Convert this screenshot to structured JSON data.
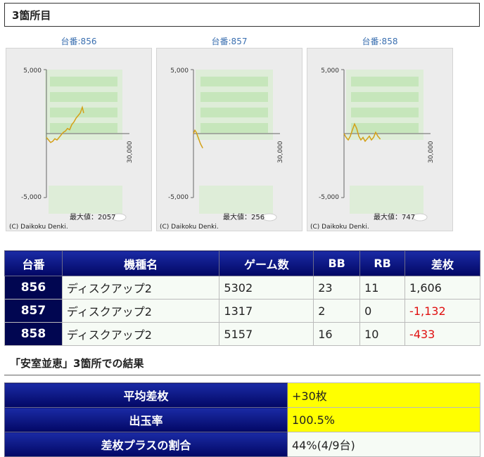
{
  "section_title": "3箇所目",
  "graphs": [
    {
      "label": "台番:856",
      "y_max_label": "5,000",
      "y_min_label": "-5,000",
      "x_max_label": "30,000",
      "max_value_text": "最大値：2057",
      "copyright": "(C) Daikoku Denki.",
      "series": [
        [
          0,
          -300
        ],
        [
          300,
          -500
        ],
        [
          600,
          -700
        ],
        [
          900,
          -600
        ],
        [
          1200,
          -400
        ],
        [
          1500,
          -500
        ],
        [
          1800,
          -300
        ],
        [
          2100,
          -100
        ],
        [
          2400,
          100
        ],
        [
          2700,
          200
        ],
        [
          3000,
          400
        ],
        [
          3300,
          300
        ],
        [
          3600,
          700
        ],
        [
          3900,
          900
        ],
        [
          4200,
          1200
        ],
        [
          4500,
          1400
        ],
        [
          4800,
          1600
        ],
        [
          5100,
          2057
        ],
        [
          5302,
          1606
        ]
      ]
    },
    {
      "label": "台番:857",
      "y_max_label": "5,000",
      "y_min_label": "-5,000",
      "x_max_label": "30,000",
      "max_value_text": "最大値：256",
      "copyright": "(C) Daikoku Denki.",
      "series": [
        [
          0,
          0
        ],
        [
          200,
          256
        ],
        [
          400,
          100
        ],
        [
          600,
          -200
        ],
        [
          800,
          -500
        ],
        [
          1000,
          -800
        ],
        [
          1317,
          -1132
        ]
      ]
    },
    {
      "label": "台番:858",
      "y_max_label": "5,000",
      "y_min_label": "-5,000",
      "x_max_label": "30,000",
      "max_value_text": "最大値：747",
      "copyright": "(C) Daikoku Denki.",
      "series": [
        [
          0,
          0
        ],
        [
          300,
          -300
        ],
        [
          600,
          -500
        ],
        [
          900,
          -200
        ],
        [
          1200,
          300
        ],
        [
          1500,
          747
        ],
        [
          1800,
          400
        ],
        [
          2100,
          -200
        ],
        [
          2400,
          -500
        ],
        [
          2700,
          -300
        ],
        [
          3000,
          -600
        ],
        [
          3300,
          -400
        ],
        [
          3600,
          -200
        ],
        [
          3900,
          -500
        ],
        [
          4200,
          -300
        ],
        [
          4500,
          100
        ],
        [
          4800,
          -200
        ],
        [
          5157,
          -433
        ]
      ]
    }
  ],
  "table": {
    "headers": [
      "台番",
      "機種名",
      "ゲーム数",
      "BB",
      "RB",
      "差枚"
    ],
    "rows": [
      {
        "id": "856",
        "name": "ディスクアップ2",
        "games": "5302",
        "bb": "23",
        "rb": "11",
        "diff": "1,606"
      },
      {
        "id": "857",
        "name": "ディスクアップ2",
        "games": "1317",
        "bb": "2",
        "rb": "0",
        "diff": "-1,132"
      },
      {
        "id": "858",
        "name": "ディスクアップ2",
        "games": "5157",
        "bb": "16",
        "rb": "10",
        "diff": "-433"
      }
    ]
  },
  "result_title": "「安室並恵」3箇所での結果",
  "summary": [
    {
      "label": "平均差枚",
      "value": "+30枚"
    },
    {
      "label": "出玉率",
      "value": "100.5%"
    },
    {
      "label": "差枚プラスの割合",
      "value": "44%(4/9台)"
    }
  ],
  "colors": {
    "header_navy": "#020764",
    "highlight_yellow": "#ffff00",
    "negative_red": "#e01010",
    "graph_line": "#d4a017"
  }
}
